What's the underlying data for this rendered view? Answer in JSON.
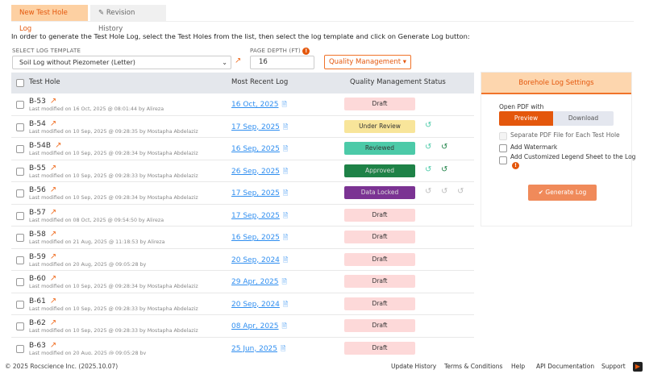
{
  "tabs": {
    "new": "New Test Hole Log",
    "revision": "Revision History"
  },
  "instruction": "In order to generate the Test Hole Log, select the Test Holes from the list, then select the log template and click on Generate Log button:",
  "template": {
    "label": "SELECT LOG TEMPLATE",
    "value": "Soil Log without Piezometer (Letter)"
  },
  "depth": {
    "label": "PAGE DEPTH (FT)",
    "value": "16"
  },
  "qm_button": "Quality Management",
  "table": {
    "headers": {
      "hole": "Test Hole",
      "log": "Most Recent Log",
      "status": "Quality Management Status"
    },
    "rows": [
      {
        "name": "B-53",
        "modified": "Last modified on 16 Oct, 2025 @ 08:01:44 by Alireza",
        "date": "16 Oct, 2025",
        "status": "Draft",
        "history": 0
      },
      {
        "name": "B-54",
        "modified": "Last modified on 10 Sep, 2025 @ 09:28:35 by Mostapha Abdelaziz",
        "date": "17 Sep, 2025",
        "status": "Under Review",
        "history": 1
      },
      {
        "name": "B-54B",
        "modified": "Last modified on 10 Sep, 2025 @ 09:28:34 by Mostapha Abdelaziz",
        "date": "16 Sep, 2025",
        "status": "Reviewed",
        "history": 2
      },
      {
        "name": "B-55",
        "modified": "Last modified on 10 Sep, 2025 @ 09:28:33 by Mostapha Abdelaziz",
        "date": "26 Sep, 2025",
        "status": "Approved",
        "history": 2
      },
      {
        "name": "B-56",
        "modified": "Last modified on 10 Sep, 2025 @ 09:28:34 by Mostapha Abdelaziz",
        "date": "17 Sep, 2025",
        "status": "Data Locked",
        "history": 3
      },
      {
        "name": "B-57",
        "modified": "Last modified on 08 Oct, 2025 @ 09:54:50 by Alireza",
        "date": "17 Sep, 2025",
        "status": "Draft",
        "history": 0
      },
      {
        "name": "B-58",
        "modified": "Last modified on 21 Aug, 2025 @ 11:18:53 by Alireza",
        "date": "16 Sep, 2025",
        "status": "Draft",
        "history": 0
      },
      {
        "name": "B-59",
        "modified": "Last modified on 20 Aug, 2025 @ 09:05:28 by",
        "date": "20 Sep, 2024",
        "status": "Draft",
        "history": 0
      },
      {
        "name": "B-60",
        "modified": "Last modified on 10 Sep, 2025 @ 09:28:34 by Mostapha Abdelaziz",
        "date": "29 Apr, 2025",
        "status": "Draft",
        "history": 0
      },
      {
        "name": "B-61",
        "modified": "Last modified on 10 Sep, 2025 @ 09:28:33 by Mostapha Abdelaziz",
        "date": "20 Sep, 2024",
        "status": "Draft",
        "history": 0
      },
      {
        "name": "B-62",
        "modified": "Last modified on 10 Sep, 2025 @ 09:28:33 by Mostapha Abdelaziz",
        "date": "08 Apr, 2025",
        "status": "Draft",
        "history": 0
      },
      {
        "name": "B-63",
        "modified": "Last modified on 20 Aug, 2025 @ 09:05:28 by",
        "date": "25 Jun, 2025",
        "status": "Draft",
        "history": 0
      }
    ]
  },
  "status_colors": {
    "Draft": [
      "#fdd9d9",
      "#333"
    ],
    "Under Review": [
      "#f8e59a",
      "#333"
    ],
    "Reviewed": [
      "#4ccaa8",
      "#333"
    ],
    "Approved": [
      "#1e8247",
      "#ddd"
    ],
    "Data Locked": [
      "#7b3393",
      "#ddd"
    ]
  },
  "settings": {
    "title": "Borehole Log Settings",
    "open_with": "Open PDF with",
    "preview": "Preview",
    "download": "Download",
    "options": [
      "Separate PDF File for Each Test Hole",
      "Add Watermark",
      "Add Customized Legend Sheet to the Log"
    ],
    "generate": "✔ Generate Log"
  },
  "footer": {
    "copyright": "© 2025 Rocscience Inc. (2025.10.07)",
    "links": [
      "Update History",
      "Terms & Conditions",
      "Help",
      "API Documentation",
      "Support"
    ]
  }
}
